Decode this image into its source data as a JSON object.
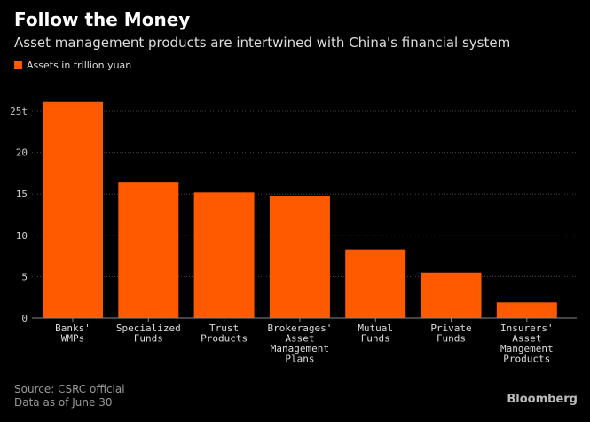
{
  "header": {
    "title": "Follow the Money",
    "subtitle": "Asset management products are intertwined with China's financial system"
  },
  "footer": {
    "source": "Source: CSRC official",
    "note": "Data as of June 30",
    "brand": "Bloomberg"
  },
  "chart_data": {
    "type": "bar",
    "title": "Follow the Money",
    "subtitle": "Asset management products are intertwined with China's financial system",
    "legend": [
      "Assets in trillion yuan"
    ],
    "legend_position": "top-left",
    "categories": [
      [
        "Banks'",
        "WMPs"
      ],
      [
        "Specialized",
        "Funds"
      ],
      [
        "Trust",
        "Products"
      ],
      [
        "Brokerages'",
        "Asset",
        "Management",
        "Plans"
      ],
      [
        "Mutual",
        "Funds"
      ],
      [
        "Private",
        "Funds"
      ],
      [
        "Insurers'",
        "Asset",
        "Mangement",
        "Products"
      ]
    ],
    "values": [
      26.1,
      16.4,
      15.2,
      14.7,
      8.3,
      5.5,
      1.9
    ],
    "yticks": [
      0,
      5,
      10,
      15,
      20,
      25
    ],
    "ytick_labels": [
      "0",
      "5",
      "10",
      "15",
      "20",
      "25t"
    ],
    "ylim": [
      0,
      27
    ],
    "grid": true,
    "bar_color": "#ff5a00"
  }
}
